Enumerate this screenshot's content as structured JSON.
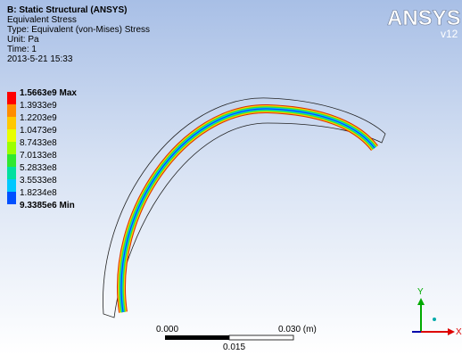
{
  "header": {
    "title": "B: Static Structural (ANSYS)",
    "lines": [
      "Equivalent Stress",
      "Type: Equivalent (von-Mises) Stress",
      "Unit: Pa",
      "Time: 1",
      "2013-5-21 15:33"
    ]
  },
  "logo": {
    "name": "ANSYS",
    "version": "v12"
  },
  "legend": {
    "labels": [
      "1.5663e9 Max",
      "1.3933e9",
      "1.2203e9",
      "1.0473e9",
      "8.7433e8",
      "7.0133e8",
      "5.2833e8",
      "3.5533e8",
      "1.8234e8",
      "9.3385e6 Min"
    ],
    "colors": [
      "#ff0000",
      "#ff8c00",
      "#ffc800",
      "#e8ff00",
      "#9cff00",
      "#30e830",
      "#00e0a0",
      "#00c8ff",
      "#0050ff"
    ]
  },
  "scale": {
    "start": "0.000",
    "end": "0.030 (m)",
    "mid": "0.015"
  },
  "triad": {
    "y": "Y",
    "x": "X"
  }
}
